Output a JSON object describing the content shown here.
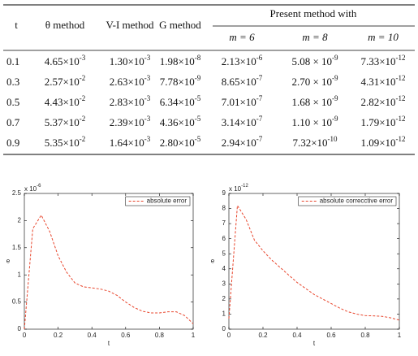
{
  "table": {
    "header": [
      "t",
      "θ method",
      "V-I method",
      "G method"
    ],
    "group_header": "Present method with",
    "sub_header": [
      "m = 6",
      "m = 8",
      "m = 10"
    ],
    "rows": [
      [
        "0.1",
        [
          "4.65×10",
          "-3"
        ],
        [
          "1.30×10",
          "-3"
        ],
        [
          "1.98×10",
          "-8"
        ],
        [
          "2.13×10",
          "-6"
        ],
        [
          "5.08 × 10",
          "-9"
        ],
        [
          "7.33×10",
          "-12"
        ]
      ],
      [
        "0.3",
        [
          "2.57×10",
          "-2"
        ],
        [
          "2.63×10",
          "-3"
        ],
        [
          "7.78×10",
          "-9"
        ],
        [
          "8.65×10",
          "-7"
        ],
        [
          "2.70 × 10",
          "-9"
        ],
        [
          "4.31×10",
          "-12"
        ]
      ],
      [
        "0.5",
        [
          "4.43×10",
          "-2"
        ],
        [
          "2.83×10",
          "-3"
        ],
        [
          "6.34×10",
          "-5"
        ],
        [
          "7.01×10",
          "-7"
        ],
        [
          "1.68 × 10",
          "-9"
        ],
        [
          "2.82×10",
          "-12"
        ]
      ],
      [
        "0.7",
        [
          "5.37×10",
          "-2"
        ],
        [
          "2.39×10",
          "-3"
        ],
        [
          "4.36×10",
          "-5"
        ],
        [
          "3.14×10",
          "-7"
        ],
        [
          "1.10 × 10",
          "-9"
        ],
        [
          "1.79×10",
          "-12"
        ]
      ],
      [
        "0.9",
        [
          "5.35×10",
          "-2"
        ],
        [
          "1.64×10",
          "-3"
        ],
        [
          "2.80×10",
          "-5"
        ],
        [
          "2.94×10",
          "-7"
        ],
        [
          "7.32×10",
          "-10"
        ],
        [
          "1.09×10",
          "-12"
        ]
      ]
    ]
  },
  "chart_data": [
    {
      "type": "line",
      "xlabel": "t",
      "ylabel": "e",
      "y_multiplier": [
        "x 10",
        "-6"
      ],
      "x": [
        0,
        0.05,
        0.1,
        0.15,
        0.2,
        0.25,
        0.3,
        0.35,
        0.4,
        0.45,
        0.5,
        0.55,
        0.6,
        0.65,
        0.7,
        0.75,
        0.8,
        0.85,
        0.9,
        0.95,
        1
      ],
      "series": [
        {
          "name": "absolute error",
          "color": "#e8452c",
          "dashed": true,
          "values": [
            0,
            1.85,
            2.1,
            1.8,
            1.35,
            1.05,
            0.85,
            0.78,
            0.76,
            0.74,
            0.7,
            0.62,
            0.5,
            0.4,
            0.33,
            0.3,
            0.3,
            0.32,
            0.32,
            0.25,
            0.1
          ]
        }
      ],
      "xlim": [
        0,
        1
      ],
      "xticks": [
        0,
        0.2,
        0.4,
        0.6,
        0.8,
        1
      ],
      "ylim": [
        0,
        2.5
      ],
      "yticks": [
        0,
        0.5,
        1,
        1.5,
        2,
        2.5
      ],
      "legend": "upper right"
    },
    {
      "type": "line",
      "xlabel": "t",
      "ylabel": "e",
      "y_multiplier": [
        "x 10",
        "-12"
      ],
      "x": [
        0,
        0.05,
        0.1,
        0.15,
        0.2,
        0.25,
        0.3,
        0.35,
        0.4,
        0.45,
        0.5,
        0.55,
        0.6,
        0.65,
        0.7,
        0.75,
        0.8,
        0.85,
        0.9,
        0.95,
        1
      ],
      "series": [
        {
          "name": "absolute correcctive error",
          "color": "#e8452c",
          "dashed": true,
          "values": [
            0.7,
            8.2,
            7.3,
            5.9,
            5.2,
            4.6,
            4.1,
            3.6,
            3.1,
            2.7,
            2.3,
            2.0,
            1.7,
            1.4,
            1.15,
            1.0,
            0.9,
            0.88,
            0.85,
            0.75,
            0.6
          ]
        }
      ],
      "xlim": [
        0,
        1
      ],
      "xticks": [
        0,
        0.2,
        0.4,
        0.6,
        0.8,
        1
      ],
      "ylim": [
        0,
        9
      ],
      "yticks": [
        0,
        1,
        2,
        3,
        4,
        5,
        6,
        7,
        8,
        9
      ],
      "legend": "upper right"
    }
  ]
}
